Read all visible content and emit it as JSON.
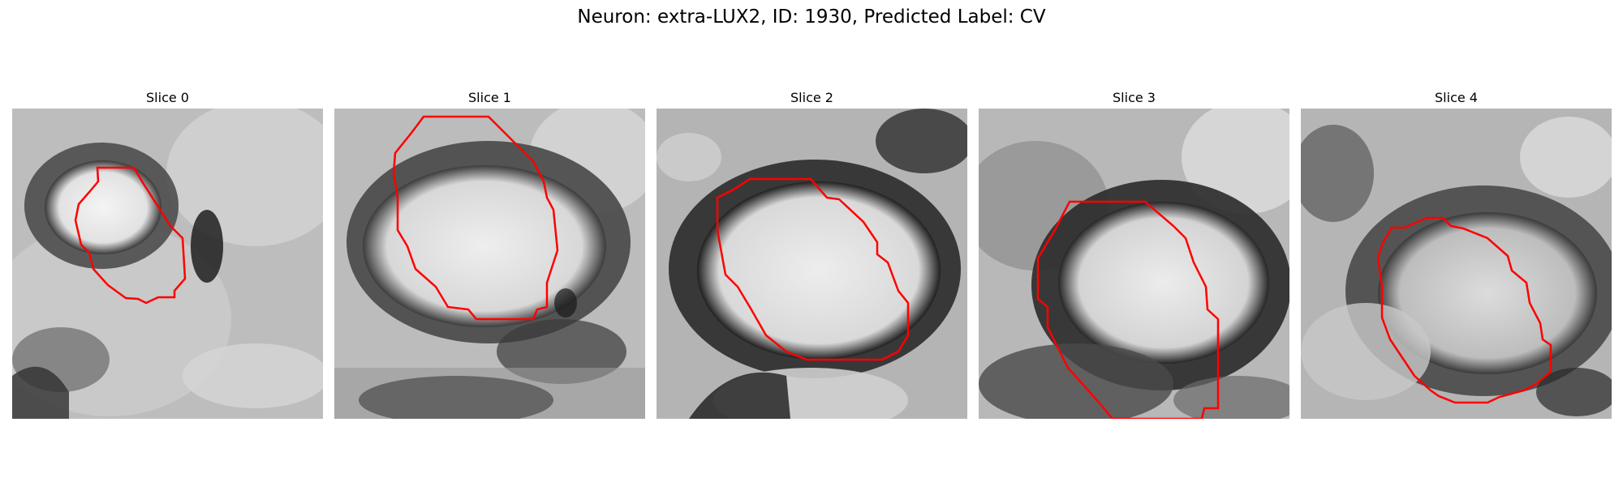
{
  "figure": {
    "suptitle": "Neuron: extra-LUX2, ID: 1930, Predicted Label: CV"
  },
  "panels": [
    {
      "title": "Slice 0",
      "image": "grayscale EM patch with bright soma at upper-left",
      "contour_color": "#ff0000"
    },
    {
      "title": "Slice 1",
      "image": "grayscale EM patch with large bright soma",
      "contour_color": "#ff0000"
    },
    {
      "title": "Slice 2",
      "image": "grayscale EM patch with centered bright soma",
      "contour_color": "#ff0000"
    },
    {
      "title": "Slice 3",
      "image": "grayscale EM patch with soma at center-right",
      "contour_color": "#ff0000"
    },
    {
      "title": "Slice 4",
      "image": "grayscale EM patch with textured soma",
      "contour_color": "#ff0000"
    }
  ]
}
